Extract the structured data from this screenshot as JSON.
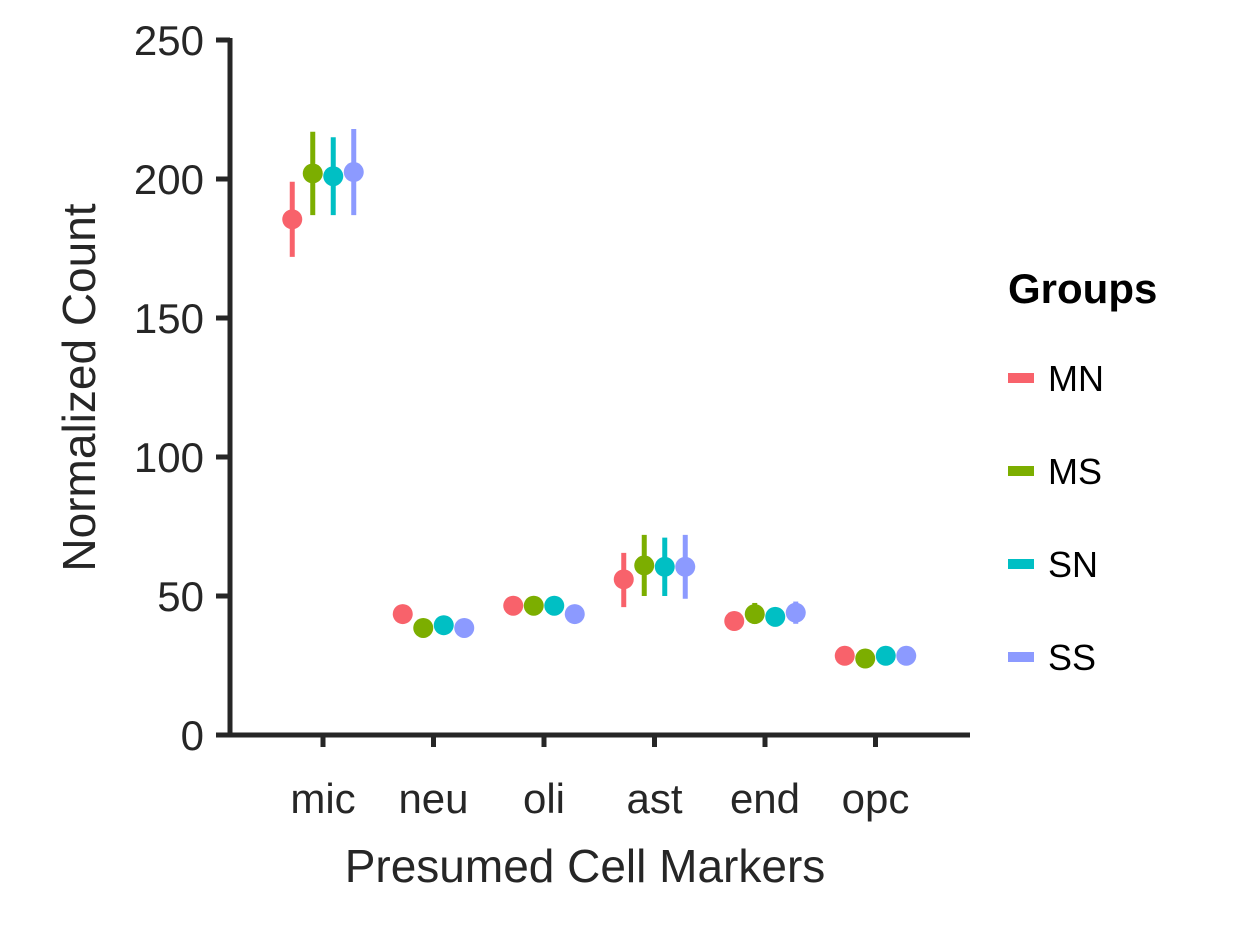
{
  "chart_data": {
    "type": "scatter",
    "variant": "dodged point range",
    "xlabel": "Presumed Cell Markers",
    "ylabel": "Normalized Count",
    "ylim": [
      0,
      250
    ],
    "yticks": [
      0,
      50,
      100,
      150,
      200,
      250
    ],
    "categories": [
      "mic",
      "neu",
      "oli",
      "ast",
      "end",
      "opc"
    ],
    "grid": false,
    "legend": {
      "title": "Groups",
      "position": "right"
    },
    "series": [
      {
        "name": "MN",
        "color": "#F8626B",
        "values": [
          185.5,
          43.5,
          46.5,
          56,
          41,
          28.5
        ],
        "lower": [
          172,
          43.5,
          46.5,
          46,
          38.5,
          28.5
        ],
        "upper": [
          199,
          43.5,
          46.5,
          65.5,
          43.5,
          28.5
        ]
      },
      {
        "name": "MS",
        "color": "#7CAE00",
        "values": [
          202,
          38.5,
          46.5,
          61,
          43.5,
          27.5
        ],
        "lower": [
          187,
          38.5,
          46.5,
          50,
          40,
          27.5
        ],
        "upper": [
          217,
          38.5,
          46.5,
          72,
          47.5,
          27.5
        ]
      },
      {
        "name": "SN",
        "color": "#00BFC4",
        "values": [
          201,
          39.5,
          46.5,
          60.5,
          42.5,
          28.5
        ],
        "lower": [
          187,
          39.5,
          46.5,
          50,
          39.5,
          28.5
        ],
        "upper": [
          215,
          39.5,
          46.5,
          71,
          45.5,
          28.5
        ]
      },
      {
        "name": "SS",
        "color": "#8C9AFF",
        "values": [
          202.5,
          38.5,
          43.5,
          60.5,
          44,
          28.5
        ],
        "lower": [
          187,
          38.5,
          43.5,
          49,
          40,
          28.5
        ],
        "upper": [
          218,
          38.5,
          43.5,
          72,
          48,
          28.5
        ]
      }
    ]
  }
}
